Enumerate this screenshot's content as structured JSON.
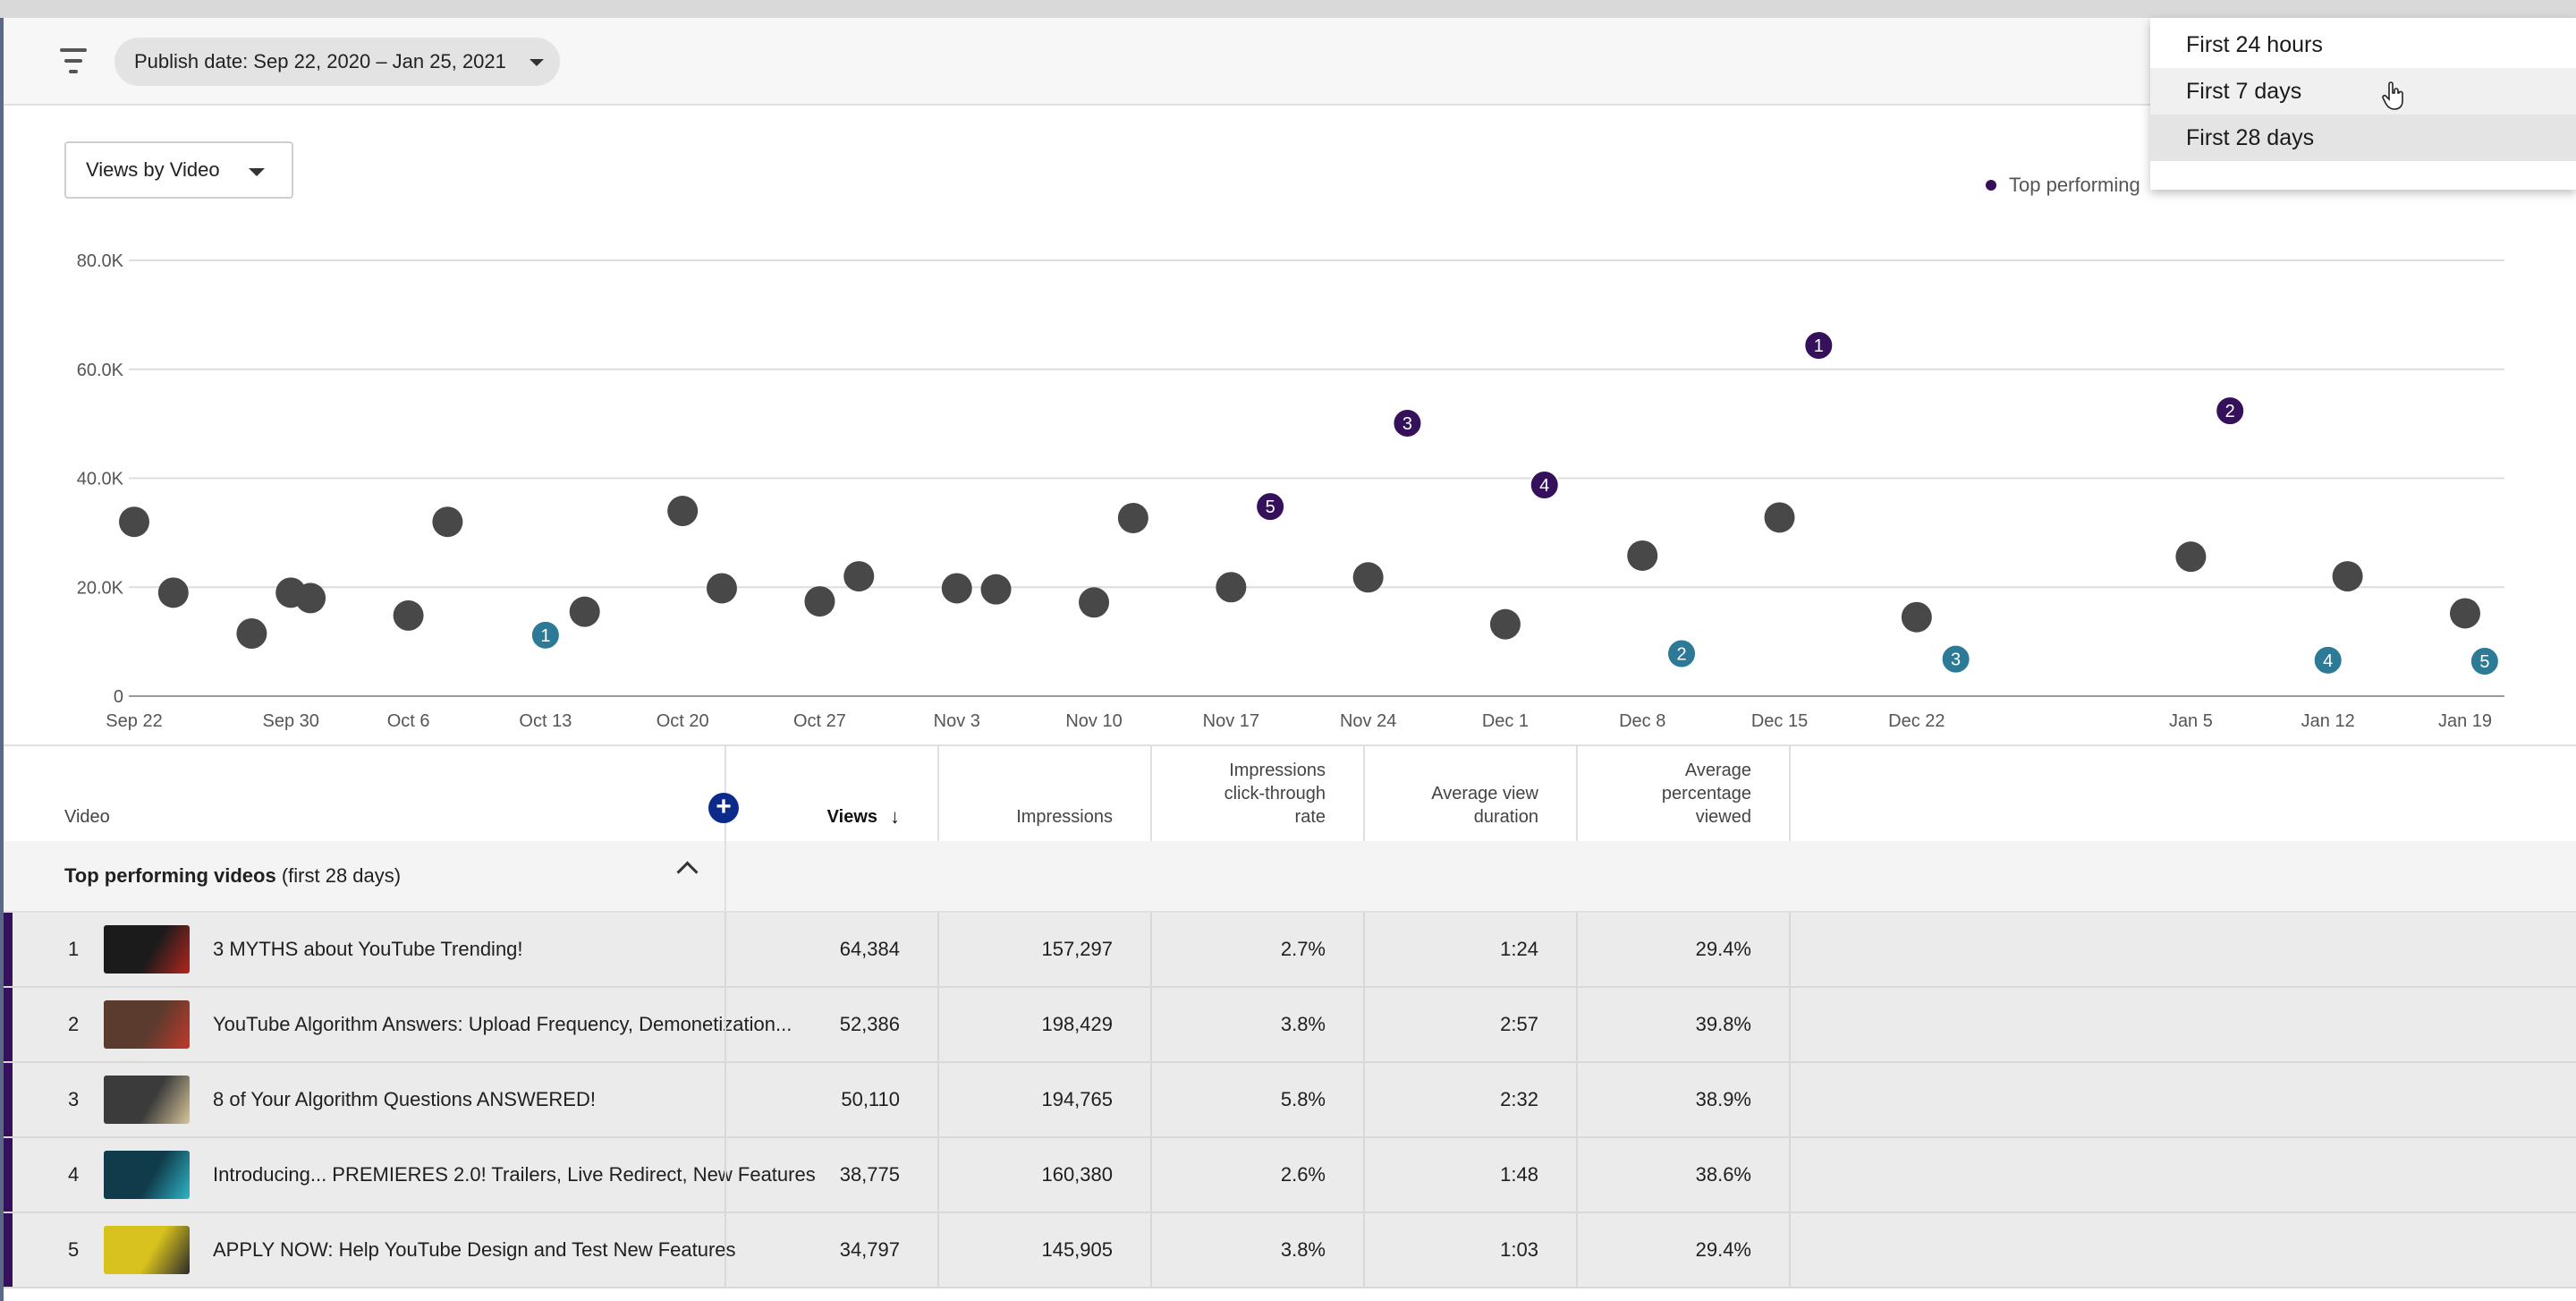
{
  "filterbar": {
    "filter_icon": "filter-list-icon",
    "publish_chip": "Publish date: Sep 22, 2020 – Jan 25, 2021"
  },
  "chart_controls": {
    "view_selector": "Views by Video",
    "legend_label": "Top performing"
  },
  "dropdown": {
    "items": [
      "First 24 hours",
      "First 7 days",
      "First 28 days"
    ],
    "hovered_index": 1,
    "selected_index": 2
  },
  "colors": {
    "top_performing": "#35115c",
    "other_series": "#2c7a96",
    "regular": "#484848"
  },
  "chart_data": {
    "type": "scatter",
    "ylim": [
      0,
      80000
    ],
    "yticks": [
      0,
      20000,
      40000,
      60000,
      80000
    ],
    "ytick_labels": [
      "0",
      "20.0K",
      "40.0K",
      "60.0K",
      "80.0K"
    ],
    "xlim_days_labels": [
      "Sep 22",
      "Sep 30",
      "Oct 6",
      "Oct 13",
      "Oct 20",
      "Oct 27",
      "Nov 3",
      "Nov 10",
      "Nov 17",
      "Nov 24",
      "Dec 1",
      "Dec 8",
      "Dec 15",
      "Dec 22",
      "Jan 5",
      "Jan 12",
      "Jan 19"
    ],
    "xtick_dates": [
      "2020-09-22",
      "2020-09-30",
      "2020-10-06",
      "2020-10-13",
      "2020-10-20",
      "2020-10-27",
      "2020-11-03",
      "2020-11-10",
      "2020-11-17",
      "2020-11-24",
      "2020-12-01",
      "2020-12-08",
      "2020-12-15",
      "2020-12-22",
      "2021-01-05",
      "2021-01-12",
      "2021-01-19"
    ],
    "points": [
      {
        "x": "2020-09-22",
        "y": 32000,
        "kind": "regular"
      },
      {
        "x": "2020-09-24",
        "y": 19000,
        "kind": "regular"
      },
      {
        "x": "2020-09-28",
        "y": 11500,
        "kind": "regular"
      },
      {
        "x": "2020-09-30",
        "y": 19000,
        "kind": "regular"
      },
      {
        "x": "2020-10-01",
        "y": 18000,
        "kind": "regular"
      },
      {
        "x": "2020-10-06",
        "y": 14800,
        "kind": "regular"
      },
      {
        "x": "2020-10-08",
        "y": 32000,
        "kind": "regular"
      },
      {
        "x": "2020-10-13",
        "y": 11200,
        "kind": "secondary",
        "label": "1"
      },
      {
        "x": "2020-10-15",
        "y": 15500,
        "kind": "regular"
      },
      {
        "x": "2020-10-20",
        "y": 34000,
        "kind": "regular"
      },
      {
        "x": "2020-10-22",
        "y": 19800,
        "kind": "regular"
      },
      {
        "x": "2020-10-27",
        "y": 17400,
        "kind": "regular"
      },
      {
        "x": "2020-10-29",
        "y": 22000,
        "kind": "regular"
      },
      {
        "x": "2020-11-03",
        "y": 19800,
        "kind": "regular"
      },
      {
        "x": "2020-11-05",
        "y": 19600,
        "kind": "regular"
      },
      {
        "x": "2020-11-10",
        "y": 17200,
        "kind": "regular"
      },
      {
        "x": "2020-11-12",
        "y": 32700,
        "kind": "regular"
      },
      {
        "x": "2020-11-17",
        "y": 20000,
        "kind": "regular"
      },
      {
        "x": "2020-11-19",
        "y": 34797,
        "kind": "top",
        "label": "5"
      },
      {
        "x": "2020-11-24",
        "y": 21800,
        "kind": "regular"
      },
      {
        "x": "2020-11-26",
        "y": 50110,
        "kind": "top",
        "label": "3"
      },
      {
        "x": "2020-12-01",
        "y": 13200,
        "kind": "regular"
      },
      {
        "x": "2020-12-03",
        "y": 38775,
        "kind": "top",
        "label": "4"
      },
      {
        "x": "2020-12-08",
        "y": 25800,
        "kind": "regular"
      },
      {
        "x": "2020-12-10",
        "y": 7800,
        "kind": "secondary",
        "label": "2"
      },
      {
        "x": "2020-12-15",
        "y": 32800,
        "kind": "regular"
      },
      {
        "x": "2020-12-17",
        "y": 64384,
        "kind": "top",
        "label": "1"
      },
      {
        "x": "2020-12-22",
        "y": 14500,
        "kind": "regular"
      },
      {
        "x": "2020-12-24",
        "y": 6800,
        "kind": "secondary",
        "label": "3"
      },
      {
        "x": "2021-01-05",
        "y": 25600,
        "kind": "regular"
      },
      {
        "x": "2021-01-07",
        "y": 52386,
        "kind": "top",
        "label": "2"
      },
      {
        "x": "2021-01-12",
        "y": 6600,
        "kind": "secondary",
        "label": "4"
      },
      {
        "x": "2021-01-13",
        "y": 22000,
        "kind": "regular"
      },
      {
        "x": "2021-01-19",
        "y": 15200,
        "kind": "regular"
      },
      {
        "x": "2021-01-20",
        "y": 6400,
        "kind": "secondary",
        "label": "5"
      }
    ]
  },
  "table": {
    "headers": {
      "video": "Video",
      "views": "Views",
      "impressions": "Impressions",
      "ctr_line1": "Impressions",
      "ctr_line2": "click-through",
      "ctr_line3": "rate",
      "avd_line1": "Average view",
      "avd_line2": "duration",
      "apv_line1": "Average",
      "apv_line2": "percentage",
      "apv_line3": "viewed",
      "sort_icon": "arrow-down-icon",
      "add_icon": "plus-icon"
    },
    "group": {
      "title": "Top performing videos",
      "subtitle": "(first 28 days)",
      "collapse_icon": "chevron-up-icon"
    },
    "rows": [
      {
        "rank": "1",
        "title": "3 MYTHS about YouTube Trending!",
        "views": "64,384",
        "impressions": "157,297",
        "ctr": "2.7%",
        "avd": "1:24",
        "apv": "29.4%",
        "thumb": [
          "#1b1b1b",
          "#b3261e"
        ]
      },
      {
        "rank": "2",
        "title": "YouTube Algorithm Answers: Upload Frequency, Demonetization...",
        "views": "52,386",
        "impressions": "198,429",
        "ctr": "3.8%",
        "avd": "2:57",
        "apv": "39.8%",
        "thumb": [
          "#5a3b2e",
          "#c0392b"
        ]
      },
      {
        "rank": "3",
        "title": "8 of Your Algorithm Questions ANSWERED!",
        "views": "50,110",
        "impressions": "194,765",
        "ctr": "5.8%",
        "avd": "2:32",
        "apv": "38.9%",
        "thumb": [
          "#3b3b3b",
          "#d9c79a"
        ]
      },
      {
        "rank": "4",
        "title": "Introducing... PREMIERES 2.0! Trailers, Live Redirect, New Features",
        "views": "38,775",
        "impressions": "160,380",
        "ctr": "2.6%",
        "avd": "1:48",
        "apv": "38.6%",
        "thumb": [
          "#0f3b4a",
          "#2fb5c7"
        ]
      },
      {
        "rank": "5",
        "title": "APPLY NOW: Help YouTube Design and Test New Features",
        "views": "34,797",
        "impressions": "145,905",
        "ctr": "3.8%",
        "avd": "1:03",
        "apv": "29.4%",
        "thumb": [
          "#d8c21e",
          "#2a2a2a"
        ]
      }
    ]
  }
}
